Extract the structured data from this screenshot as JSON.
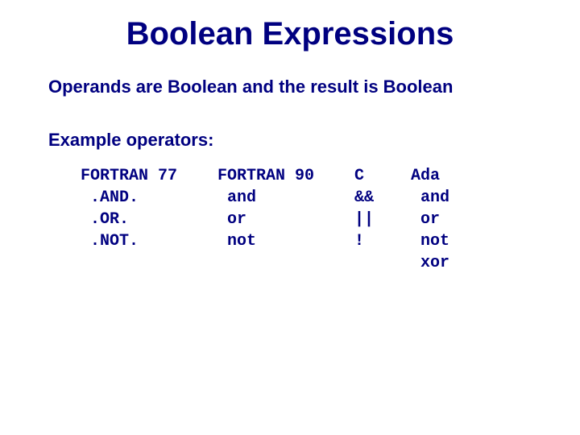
{
  "title": "Boolean Expressions",
  "line1": "Operands are Boolean and the result is Boolean",
  "subhead": "Example operators:",
  "text_color": "#000080",
  "background_color": "#ffffff",
  "title_fontsize": 40,
  "body_fontsize": 22,
  "table_fontsize": 20,
  "columns": [
    {
      "header": "FORTRAN 77",
      "items": [
        ".AND.",
        ".OR.",
        ".NOT.",
        ""
      ]
    },
    {
      "header": "FORTRAN 90",
      "items": [
        "and",
        "or",
        "not",
        ""
      ]
    },
    {
      "header": "C",
      "items": [
        "&&",
        "||",
        "!",
        ""
      ]
    },
    {
      "header": "Ada",
      "items": [
        "and",
        "or",
        "not",
        "xor"
      ]
    }
  ]
}
